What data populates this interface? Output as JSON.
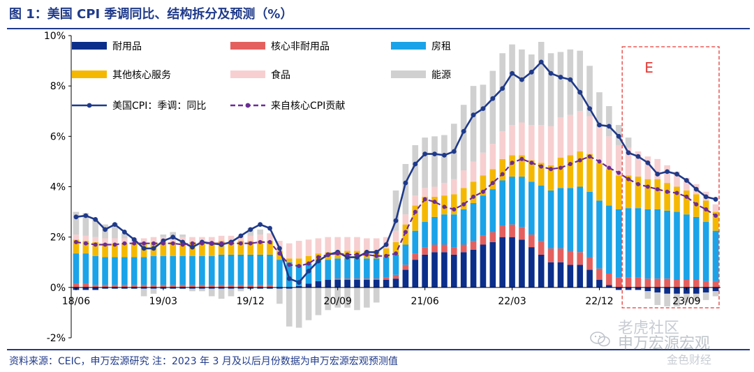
{
  "header": {
    "title": "图 1：美国 CPI 季调同比、结构拆分及预测（%）"
  },
  "footer": {
    "source": "资料来源：CEIC，申万宏源研究   注：2023 年 3 月及以后月份数据为申万宏源宏观预测值"
  },
  "watermark": {
    "line1": "老虎社区",
    "line2": "申万宏源宏观",
    "line3": "金色财经"
  },
  "chart_data": {
    "type": "bar",
    "stacked": true,
    "xlabel": "",
    "ylabel": "",
    "ylim": [
      -2,
      10
    ],
    "yticks": [
      "10%",
      "8%",
      "6%",
      "4%",
      "2%",
      "0%",
      "-2%"
    ],
    "ytick_values": [
      10,
      8,
      6,
      4,
      2,
      0,
      -2
    ],
    "x": [
      "18/06",
      "18/07",
      "18/08",
      "18/09",
      "18/10",
      "18/11",
      "18/12",
      "19/01",
      "19/02",
      "19/03",
      "19/04",
      "19/05",
      "19/06",
      "19/07",
      "19/08",
      "19/09",
      "19/10",
      "19/11",
      "19/12",
      "20/01",
      "20/02",
      "20/03",
      "20/04",
      "20/05",
      "20/06",
      "20/07",
      "20/08",
      "20/09",
      "20/10",
      "20/11",
      "20/12",
      "21/01",
      "21/02",
      "21/03",
      "21/04",
      "21/05",
      "21/06",
      "21/07",
      "21/08",
      "21/09",
      "21/10",
      "21/11",
      "21/12",
      "22/01",
      "22/02",
      "22/03",
      "22/04",
      "22/05",
      "22/06",
      "22/07",
      "22/08",
      "22/09",
      "22/10",
      "22/11",
      "22/12",
      "23/01",
      "23/02",
      "23/03",
      "23/04",
      "23/05",
      "23/06",
      "23/07",
      "23/08",
      "23/09",
      "23/10",
      "23/11",
      "23/12"
    ],
    "xtick_labels": [
      "18/06",
      "19/03",
      "19/12",
      "20/09",
      "21/06",
      "22/03",
      "22/12",
      "23/09"
    ],
    "xtick_indices": [
      0,
      9,
      18,
      27,
      36,
      45,
      54,
      63
    ],
    "forecast_region": {
      "label": "E",
      "start": "23/03",
      "end": "23/12",
      "color": "#e53935"
    },
    "legend_position": "top",
    "colors": {
      "durables": "#0b2e8a",
      "core_nondurables": "#e4605e",
      "rent": "#1aa3e8",
      "other_core_services": "#f5b800",
      "food": "#f7cfd0",
      "energy": "#d0d0d0",
      "headline_line": "#1f3a8a",
      "core_line": "#6b2d94",
      "axis": "#000000"
    },
    "series": [
      {
        "name": "耐用品",
        "key": "durables",
        "kind": "bar",
        "values": [
          -0.1,
          -0.1,
          -0.1,
          -0.05,
          -0.05,
          -0.05,
          -0.05,
          -0.05,
          -0.05,
          -0.05,
          -0.05,
          -0.05,
          -0.05,
          -0.05,
          -0.05,
          -0.05,
          -0.05,
          -0.05,
          -0.05,
          -0.05,
          -0.05,
          -0.05,
          -0.05,
          0.05,
          0.15,
          0.25,
          0.3,
          0.3,
          0.3,
          0.3,
          0.3,
          0.3,
          0.3,
          0.35,
          0.7,
          1.1,
          1.3,
          1.4,
          1.4,
          1.3,
          1.4,
          1.5,
          1.7,
          1.8,
          2.0,
          2.0,
          1.9,
          1.6,
          1.3,
          1.0,
          1.0,
          0.9,
          0.9,
          0.7,
          0.3,
          0.1,
          -0.1,
          -0.1,
          -0.1,
          -0.15,
          -0.2,
          -0.25,
          -0.25,
          -0.25,
          -0.25,
          -0.2,
          -0.15
        ]
      },
      {
        "name": "核心非耐用品",
        "key": "core_nondurables",
        "kind": "bar",
        "values": [
          0.15,
          0.15,
          0.1,
          0.1,
          0.1,
          0.1,
          0.1,
          0.1,
          0.1,
          0.1,
          0.1,
          0.1,
          0.1,
          0.1,
          0.1,
          0.1,
          0.1,
          0.1,
          0.1,
          0.1,
          0.1,
          0.0,
          0.0,
          0.0,
          0.0,
          0.0,
          0.0,
          0.05,
          0.05,
          0.05,
          0.05,
          0.05,
          0.1,
          0.15,
          0.2,
          0.25,
          0.3,
          0.3,
          0.3,
          0.3,
          0.3,
          0.35,
          0.35,
          0.4,
          0.45,
          0.5,
          0.5,
          0.5,
          0.55,
          0.55,
          0.55,
          0.55,
          0.5,
          0.5,
          0.45,
          0.45,
          0.4,
          0.4,
          0.4,
          0.35,
          0.35,
          0.35,
          0.3,
          0.3,
          0.3,
          0.25,
          0.25
        ]
      },
      {
        "name": "房租",
        "key": "rent",
        "kind": "bar",
        "values": [
          1.2,
          1.2,
          1.15,
          1.1,
          1.1,
          1.1,
          1.1,
          1.1,
          1.15,
          1.15,
          1.15,
          1.15,
          1.15,
          1.15,
          1.15,
          1.2,
          1.2,
          1.2,
          1.2,
          1.2,
          1.2,
          1.1,
          1.0,
          0.85,
          0.8,
          0.8,
          0.8,
          0.8,
          0.8,
          0.8,
          0.8,
          0.8,
          0.8,
          0.8,
          0.8,
          0.9,
          1.0,
          1.1,
          1.2,
          1.3,
          1.4,
          1.5,
          1.6,
          1.7,
          1.8,
          1.9,
          2.0,
          2.1,
          2.2,
          2.3,
          2.4,
          2.5,
          2.6,
          2.6,
          2.7,
          2.7,
          2.7,
          2.75,
          2.75,
          2.75,
          2.75,
          2.7,
          2.7,
          2.6,
          2.5,
          2.35,
          2.0
        ]
      },
      {
        "name": "其他核心服务",
        "key": "other_core_services",
        "kind": "bar",
        "values": [
          0.55,
          0.5,
          0.55,
          0.55,
          0.55,
          0.55,
          0.55,
          0.55,
          0.55,
          0.55,
          0.55,
          0.55,
          0.55,
          0.55,
          0.55,
          0.55,
          0.55,
          0.55,
          0.55,
          0.55,
          0.55,
          0.35,
          0.15,
          0.25,
          0.3,
          0.3,
          0.3,
          0.3,
          0.3,
          0.3,
          0.3,
          0.3,
          0.35,
          0.5,
          0.8,
          1.0,
          1.0,
          0.8,
          0.75,
          0.8,
          0.85,
          0.85,
          0.8,
          0.8,
          0.85,
          0.85,
          0.85,
          0.85,
          0.9,
          1.0,
          1.2,
          1.3,
          1.4,
          1.5,
          1.5,
          1.45,
          1.35,
          1.3,
          1.25,
          1.2,
          1.2,
          1.1,
          1.0,
          0.95,
          0.9,
          0.85,
          0.75
        ]
      },
      {
        "name": "食品",
        "key": "food",
        "kind": "bar",
        "values": [
          0.2,
          0.2,
          0.2,
          0.2,
          0.2,
          0.2,
          0.2,
          0.2,
          0.2,
          0.2,
          0.2,
          0.2,
          0.2,
          0.2,
          0.2,
          0.2,
          0.2,
          0.2,
          0.2,
          0.25,
          0.3,
          0.4,
          0.6,
          0.7,
          0.65,
          0.6,
          0.6,
          0.55,
          0.55,
          0.55,
          0.5,
          0.5,
          0.45,
          0.45,
          0.4,
          0.4,
          0.35,
          0.4,
          0.5,
          0.6,
          0.7,
          0.8,
          0.9,
          1.0,
          1.1,
          1.2,
          1.3,
          1.4,
          1.5,
          1.55,
          1.6,
          1.6,
          1.6,
          1.5,
          1.4,
          1.3,
          1.2,
          1.1,
          1.0,
          0.9,
          0.8,
          0.7,
          0.6,
          0.5,
          0.4,
          0.35,
          0.3
        ]
      },
      {
        "name": "能源",
        "key": "energy",
        "kind": "bar",
        "values": [
          0.9,
          0.9,
          0.7,
          0.55,
          0.6,
          0.2,
          0.0,
          -0.3,
          -0.2,
          0.1,
          0.2,
          0.1,
          -0.1,
          -0.1,
          -0.3,
          -0.4,
          -0.3,
          -0.1,
          0.3,
          0.2,
          0.0,
          -0.6,
          -1.5,
          -1.6,
          -1.3,
          -1.1,
          -0.9,
          -0.8,
          -0.8,
          -0.9,
          -0.8,
          -0.6,
          0.0,
          1.6,
          2.0,
          2.0,
          2.0,
          2.0,
          1.9,
          2.2,
          2.6,
          3.0,
          2.7,
          2.9,
          3.1,
          3.2,
          2.9,
          2.8,
          3.3,
          2.9,
          2.6,
          2.6,
          2.4,
          2.0,
          1.4,
          1.2,
          0.8,
          0.4,
          0.0,
          -0.3,
          -0.5,
          -0.5,
          -0.5,
          -0.35,
          -0.3,
          -0.3,
          -0.2
        ]
      },
      {
        "name": "美国CPI：季调：同比",
        "key": "headline",
        "kind": "line",
        "values": [
          2.8,
          2.85,
          2.7,
          2.3,
          2.5,
          2.2,
          1.9,
          1.55,
          1.55,
          1.85,
          2.0,
          1.8,
          1.6,
          1.8,
          1.75,
          1.7,
          1.8,
          2.05,
          2.3,
          2.5,
          2.35,
          1.55,
          0.35,
          0.2,
          0.65,
          1.05,
          1.3,
          1.4,
          1.2,
          1.2,
          1.4,
          1.4,
          1.7,
          2.65,
          4.15,
          4.9,
          5.3,
          5.3,
          5.25,
          5.4,
          6.2,
          6.85,
          7.1,
          7.5,
          7.9,
          8.5,
          8.25,
          8.55,
          8.95,
          8.5,
          8.35,
          8.25,
          7.75,
          7.1,
          6.45,
          6.4,
          6.0,
          5.35,
          5.2,
          4.95,
          4.5,
          4.6,
          4.5,
          4.25,
          3.9,
          3.6,
          3.5
        ]
      },
      {
        "name": "来自核心CPI贡献",
        "key": "core",
        "kind": "dashed-line",
        "values": [
          1.8,
          1.75,
          1.7,
          1.7,
          1.7,
          1.75,
          1.75,
          1.75,
          1.75,
          1.75,
          1.75,
          1.7,
          1.75,
          1.75,
          1.75,
          1.75,
          1.75,
          1.75,
          1.75,
          1.8,
          1.8,
          1.35,
          0.9,
          0.85,
          0.95,
          1.2,
          1.3,
          1.35,
          1.3,
          1.3,
          1.3,
          1.25,
          1.25,
          1.35,
          2.2,
          3.0,
          3.5,
          3.4,
          3.2,
          3.1,
          3.3,
          3.6,
          3.8,
          4.15,
          4.5,
          4.95,
          5.1,
          4.95,
          4.8,
          4.7,
          4.75,
          4.9,
          5.05,
          5.2,
          5.0,
          4.75,
          4.55,
          4.3,
          4.1,
          4.0,
          3.9,
          3.8,
          3.75,
          3.6,
          3.3,
          3.1,
          2.85
        ]
      }
    ]
  }
}
